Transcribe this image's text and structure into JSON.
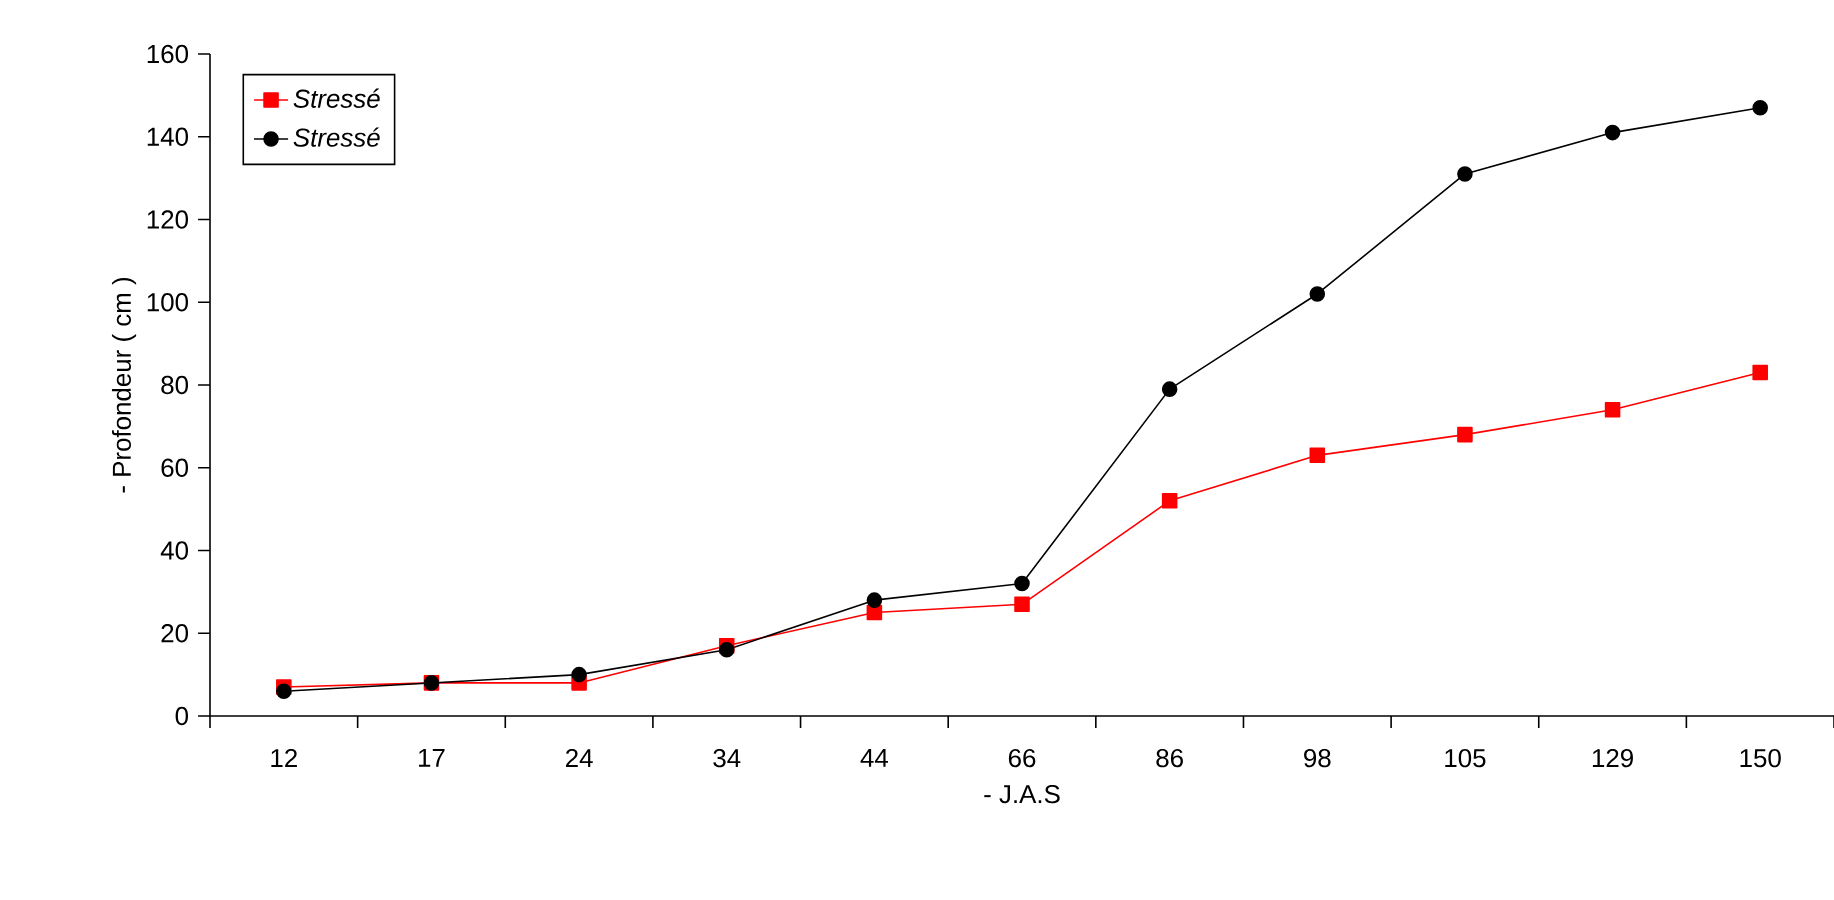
{
  "chart_data": {
    "type": "line",
    "xlabel": "- J.A.S",
    "ylabel": "- Profondeur ( cm )",
    "categories": [
      "12",
      "17",
      "24",
      "34",
      "44",
      "66",
      "86",
      "98",
      "105",
      "129",
      "150"
    ],
    "series": [
      {
        "name": "Stressé",
        "color": "#ff0000",
        "marker": "square",
        "values": [
          7,
          8,
          8,
          17,
          25,
          27,
          52,
          63,
          68,
          74,
          83
        ]
      },
      {
        "name": "Stressé",
        "color": "#000000",
        "marker": "circle",
        "values": [
          6,
          8,
          10,
          16,
          28,
          32,
          79,
          102,
          131,
          141,
          147
        ]
      }
    ],
    "ylim": [
      0,
      160
    ],
    "yticks": [
      0,
      20,
      40,
      60,
      80,
      100,
      120,
      140,
      160
    ],
    "legend": "top left",
    "grid": false,
    "line_style": "solid"
  }
}
